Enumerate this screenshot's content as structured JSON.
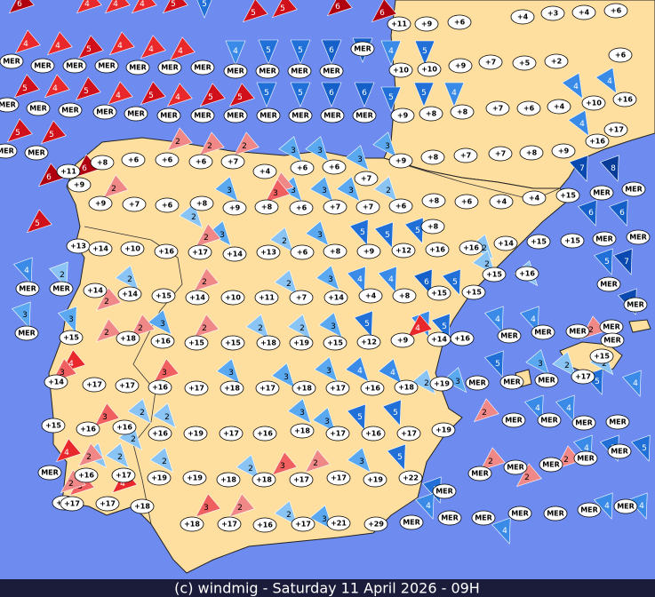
{
  "footer": "(c) windmig - Saturday 11 April 2026 - 09H",
  "stations": [
    "+6",
    "+11",
    "+9",
    "+6",
    "+4",
    "+3",
    "+4",
    "MER",
    "MER",
    "MER",
    "MER",
    "MER",
    "MER",
    "MER",
    "MER",
    "MER",
    "MER",
    "MER",
    "MER",
    "+10",
    "+10",
    "+9",
    "+7",
    "+5",
    "+2",
    "+6",
    "MER",
    "MER",
    "MER",
    "MER",
    "MER",
    "MER",
    "MER",
    "MER",
    "MER",
    "MER",
    "MER",
    "MER",
    "+9",
    "+8",
    "+8",
    "+7",
    "+6",
    "+4",
    "+10",
    "+16",
    "MER",
    "MER",
    "+8",
    "+6",
    "+6",
    "+6",
    "+7",
    "+4",
    "+6",
    "+6",
    "+9",
    "+8",
    "+7",
    "+7",
    "+8",
    "+9",
    "+16",
    "+17",
    "+11",
    "+9",
    "+7",
    "+9",
    "+7",
    "+6",
    "+8",
    "+9",
    "+8",
    "+6",
    "+7",
    "+7",
    "+6",
    "+8",
    "+6",
    "+4",
    "+4",
    "+15",
    "MER",
    "MER",
    "+13",
    "+14",
    "+10",
    "+16",
    "+17",
    "+14",
    "+13",
    "+6",
    "+8",
    "+9",
    "+12",
    "+16",
    "+16",
    "+14",
    "+15",
    "+15",
    "MER",
    "MER",
    "+8",
    "MER",
    "MER",
    "+14",
    "+14",
    "+15",
    "+14",
    "+10",
    "+11",
    "+7",
    "+14",
    "+4",
    "+8",
    "+15",
    "+15",
    "+15",
    "+16",
    "MER",
    "MER",
    "MER",
    "+15",
    "+18",
    "+16",
    "+15",
    "+15",
    "+18",
    "+19",
    "+15",
    "+12",
    "+9",
    "+14",
    "+16",
    "MER",
    "MER",
    "MER",
    "MER",
    "+15",
    "MER",
    "+14",
    "+17",
    "+17",
    "+16",
    "+17",
    "+18",
    "+17",
    "+18",
    "+17",
    "+16",
    "+18",
    "+19",
    "MER",
    "MER",
    "MER",
    "+17",
    "+15",
    "+16",
    "+16",
    "+16",
    "+19",
    "+17",
    "+16",
    "+18",
    "+17",
    "+16",
    "+17",
    "+19",
    "MER",
    "MER",
    "MER",
    "MER",
    "MER",
    "+16",
    "+17",
    "+19",
    "+19",
    "+18",
    "+18",
    "+17",
    "+17",
    "+19",
    "+22",
    "MER",
    "MER",
    "MER",
    "MER",
    "MER",
    "MER",
    "+16",
    "+17",
    "+17",
    "+18",
    "+18",
    "+17",
    "+16",
    "+17",
    "+21",
    "+29",
    "MER",
    "MER",
    "MER",
    "MER",
    "MER",
    "MER",
    "MER"
  ],
  "winds": [
    "6",
    "4",
    "4",
    "4",
    "5",
    "5",
    "5",
    "6",
    "6",
    "4",
    "4",
    "5",
    "4",
    "4",
    "4",
    "5",
    "4",
    "5",
    "4",
    "5",
    "4",
    "5",
    "5",
    "5",
    "5",
    "6",
    "6",
    "5",
    "5",
    "4",
    "5",
    "5",
    "6",
    "6",
    "5",
    "5",
    "6",
    "6",
    "4",
    "5",
    "5",
    "4",
    "5",
    "4",
    "4",
    "4",
    "8",
    "7",
    "6",
    "6",
    "5",
    "7",
    "7",
    "5",
    "4",
    "5",
    "4",
    "4",
    "4",
    "4",
    "5",
    "5",
    "5",
    "4",
    "4",
    "6",
    "5",
    "5",
    "4",
    "5",
    "5",
    "5",
    "5",
    "5",
    "4",
    "4",
    "4",
    "4",
    "5",
    "5",
    "4",
    "4",
    "2",
    "3",
    "3",
    "3",
    "3",
    "3",
    "3",
    "3",
    "3",
    "3",
    "3",
    "2",
    "2",
    "3",
    "2",
    "3",
    "2",
    "3",
    "2",
    "3",
    "2",
    "2",
    "3",
    "3",
    "3",
    "3",
    "4",
    "4",
    "2",
    "3",
    "3",
    "2",
    "2",
    "2",
    "2",
    "2",
    "3",
    "3",
    "3",
    "2",
    "3",
    "2",
    "2",
    "2",
    "2",
    "2",
    "2",
    "2",
    "2",
    "2",
    "2",
    "2",
    "2",
    "2",
    "2",
    "2",
    "2",
    "3",
    "2",
    "3",
    "4",
    "2",
    "3",
    "2",
    "4",
    "3",
    "2",
    "3",
    "2",
    "2",
    "3",
    "2",
    "2",
    "2",
    "2",
    "2",
    "4",
    "4",
    "3"
  ]
}
